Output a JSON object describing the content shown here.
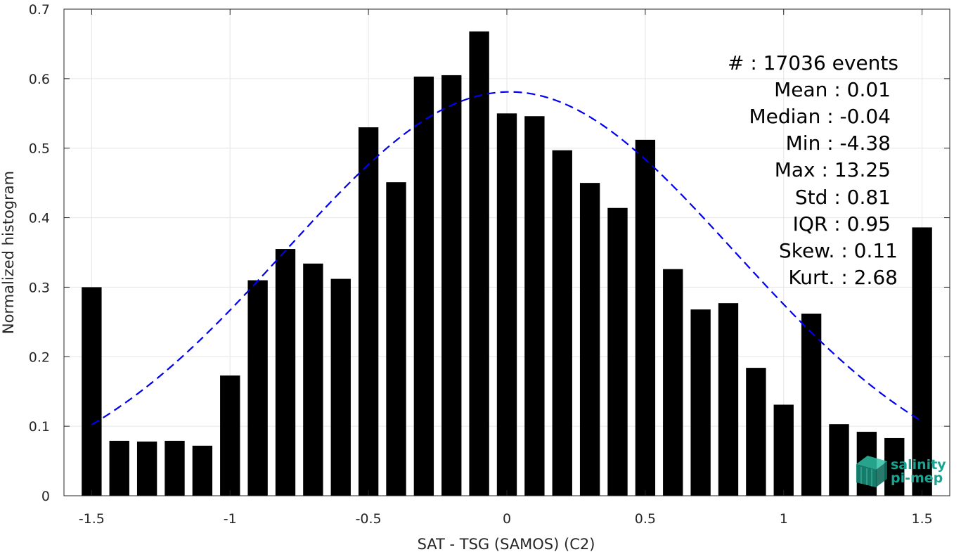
{
  "chart_data": {
    "type": "bar",
    "x": [
      -1.5,
      -1.4,
      -1.3,
      -1.2,
      -1.1,
      -1.0,
      -0.9,
      -0.8,
      -0.7,
      -0.6,
      -0.5,
      -0.4,
      -0.3,
      -0.2,
      -0.1,
      0.0,
      0.1,
      0.2,
      0.3,
      0.4,
      0.5,
      0.6,
      0.7,
      0.8,
      0.9,
      1.0,
      1.1,
      1.2,
      1.3,
      1.4,
      1.5
    ],
    "values": [
      0.3,
      0.079,
      0.078,
      0.079,
      0.072,
      0.173,
      0.31,
      0.355,
      0.334,
      0.312,
      0.53,
      0.451,
      0.603,
      0.605,
      0.668,
      0.55,
      0.546,
      0.497,
      0.45,
      0.414,
      0.512,
      0.326,
      0.268,
      0.277,
      0.184,
      0.131,
      0.262,
      0.103,
      0.092,
      0.083,
      0.386
    ],
    "fit_curve": {
      "mean": 0.01,
      "std": 0.81,
      "peak": 0.581,
      "style": "dashed",
      "color": "#0000ee"
    },
    "title": "",
    "xlabel": "SAT - TSG (SAMOS) (C2)",
    "ylabel": "Normalized histogram",
    "xlim": [
      -1.6,
      1.6
    ],
    "ylim": [
      0,
      0.7
    ],
    "xticks": [
      "-1.5",
      "-1",
      "-0.5",
      "0",
      "0.5",
      "1",
      "1.5"
    ],
    "yticks": [
      "0",
      "0.1",
      "0.2",
      "0.3",
      "0.4",
      "0.5",
      "0.6",
      "0.7"
    ],
    "grid": true,
    "bar_color": "#000000"
  },
  "stats": [
    "#  : 17036 events",
    "Mean : 0.01",
    "Median : -0.04",
    "Min : -4.38",
    "Max : 13.25",
    "Std : 0.81",
    "IQR : 0.95",
    "Skew. : 0.11",
    "Kurt. : 2.68"
  ],
  "logo": {
    "line1": "salinity",
    "line2": "pi-mep",
    "icon": "cube-logo-icon",
    "color": "#1aa391"
  }
}
